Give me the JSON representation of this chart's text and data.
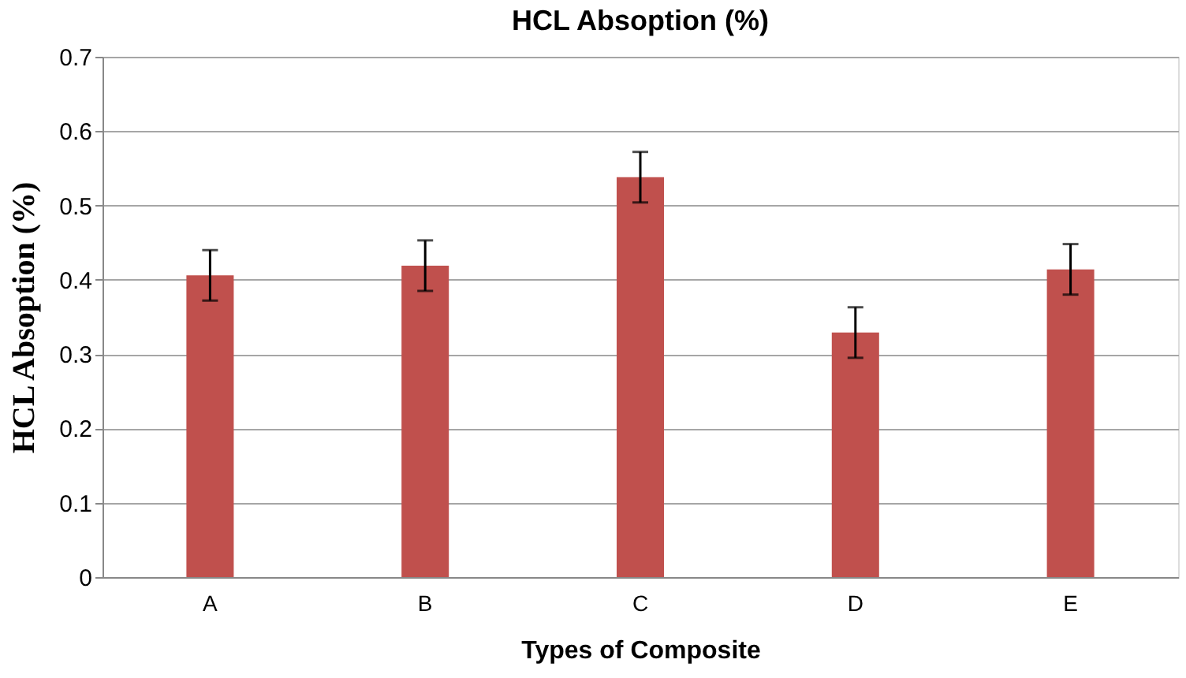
{
  "chart_data": {
    "type": "bar",
    "title": "HCL Absoption (%)",
    "xlabel": "Types of Composite",
    "ylabel": "HCL Absoption (%)",
    "categories": [
      "A",
      "B",
      "C",
      "D",
      "E"
    ],
    "values": [
      0.406,
      0.419,
      0.538,
      0.329,
      0.414
    ],
    "errors": [
      0.034,
      0.034,
      0.034,
      0.034,
      0.034
    ],
    "color": "#c0504d",
    "ylim": [
      0,
      0.7
    ],
    "yticks": [
      0,
      0.1,
      0.2,
      0.3,
      0.4,
      0.5,
      0.6,
      0.7
    ],
    "grid": "y"
  }
}
